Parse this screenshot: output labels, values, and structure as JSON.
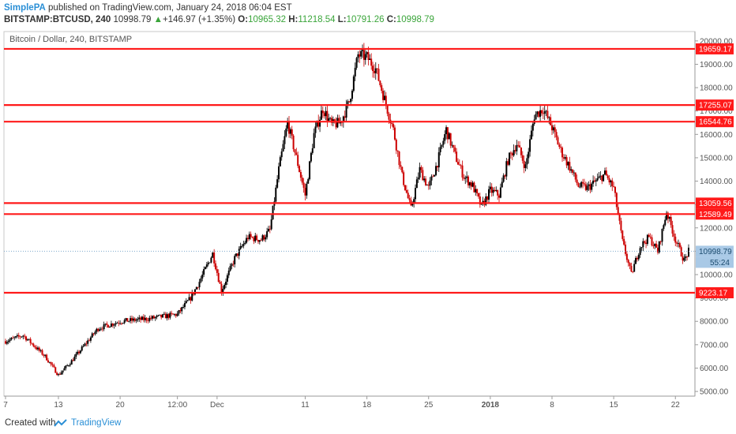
{
  "header": {
    "author": "SimplePA",
    "published_text": " published on TradingView.com, January 24, 2018 06:04 EST",
    "symbol": "BITSTAMP:BTCUSD, 240",
    "last": "10998.79",
    "change_arrow": "▲",
    "change": "+146.97 (+1.35%)",
    "o_label": "O:",
    "o_value": "10965.32",
    "h_label": "H:",
    "h_value": "11218.54",
    "l_label": "L:",
    "l_value": "10791.26",
    "c_label": "C:",
    "c_value": "10998.79"
  },
  "footer": {
    "created_with": "Created with",
    "brand": "TradingView"
  },
  "colors": {
    "level_line": "#ff1a1a",
    "candle_up": "#000000",
    "candle_down": "#cc0000",
    "current_price_line": "#7fa9cc",
    "price_tag": "#a9c9e6",
    "brand": "#2a8fd6"
  },
  "chart_data": {
    "type": "candlestick",
    "title": "Bitcoin / Dollar, 240, BITSTAMP",
    "ylim": [
      4800,
      20400
    ],
    "y_ticks": [
      5000,
      6000,
      7000,
      8000,
      9000,
      10000,
      11000,
      12000,
      13000,
      14000,
      15000,
      16000,
      17000,
      18000,
      19000,
      20000
    ],
    "y_tick_labels": [
      "5000.00",
      "6000.00",
      "7000.00",
      "8000.00",
      "9000.00",
      "10000.00",
      "11000.00",
      "12000.00",
      "13000.00",
      "14000.00",
      "15000.00",
      "16000.00",
      "17000.00",
      "18000.00",
      "19000.00",
      "20000.00"
    ],
    "x_range_days": [
      0,
      77.5
    ],
    "x_ticks": [
      {
        "label": "7",
        "day": 0
      },
      {
        "label": "13",
        "day": 6
      },
      {
        "label": "20",
        "day": 13
      },
      {
        "label": "12:00",
        "day": 19.5
      },
      {
        "label": "Dec",
        "day": 24
      },
      {
        "label": "11",
        "day": 34
      },
      {
        "label": "18",
        "day": 41
      },
      {
        "label": "25",
        "day": 48
      },
      {
        "label": "2018",
        "day": 55
      },
      {
        "label": "8",
        "day": 62
      },
      {
        "label": "15",
        "day": 69
      },
      {
        "label": "22",
        "day": 76
      }
    ],
    "levels": [
      19659.17,
      17255.07,
      16544.76,
      13059.56,
      12589.49,
      9223.17
    ],
    "level_labels": [
      "19659.17",
      "17255.07",
      "16544.76",
      "13059.56",
      "12589.49",
      "9223.17"
    ],
    "current_price": 10998.79,
    "current_price_label": "10998.79",
    "countdown_label": "55:24",
    "path": [
      [
        0,
        7150
      ],
      [
        2,
        7400
      ],
      [
        4.5,
        6500
      ],
      [
        6,
        5700
      ],
      [
        7.5,
        6300
      ],
      [
        9,
        7000
      ],
      [
        10.5,
        7700
      ],
      [
        13,
        8000
      ],
      [
        16,
        8100
      ],
      [
        19.5,
        8300
      ],
      [
        21,
        9000
      ],
      [
        22,
        9700
      ],
      [
        23.5,
        10900
      ],
      [
        24.5,
        9300
      ],
      [
        26,
        10700
      ],
      [
        27.5,
        11600
      ],
      [
        29,
        11500
      ],
      [
        30,
        11900
      ],
      [
        31,
        14500
      ],
      [
        32,
        16500
      ],
      [
        33,
        15000
      ],
      [
        34,
        13400
      ],
      [
        35,
        16000
      ],
      [
        36,
        17100
      ],
      [
        37,
        16400
      ],
      [
        38,
        16500
      ],
      [
        39,
        17400
      ],
      [
        40,
        19400
      ],
      [
        41,
        19300
      ],
      [
        42,
        18800
      ],
      [
        43,
        17500
      ],
      [
        44,
        16200
      ],
      [
        45,
        14200
      ],
      [
        46,
        12800
      ],
      [
        47,
        14500
      ],
      [
        48,
        13700
      ],
      [
        49,
        14800
      ],
      [
        50,
        16200
      ],
      [
        51,
        15100
      ],
      [
        52,
        14200
      ],
      [
        53,
        13800
      ],
      [
        54,
        12900
      ],
      [
        55,
        13600
      ],
      [
        56,
        13400
      ],
      [
        57,
        14900
      ],
      [
        58,
        15600
      ],
      [
        59,
        14600
      ],
      [
        60,
        16800
      ],
      [
        61,
        17100
      ],
      [
        62,
        16300
      ],
      [
        63,
        15300
      ],
      [
        64,
        14600
      ],
      [
        65,
        13800
      ],
      [
        66,
        13700
      ],
      [
        67,
        14000
      ],
      [
        68,
        14300
      ],
      [
        69,
        13700
      ],
      [
        70,
        11400
      ],
      [
        71,
        10000
      ],
      [
        72,
        11200
      ],
      [
        73,
        11600
      ],
      [
        74,
        11000
      ],
      [
        75,
        12700
      ],
      [
        76,
        11500
      ],
      [
        77,
        10600
      ],
      [
        77.5,
        10998
      ]
    ]
  }
}
